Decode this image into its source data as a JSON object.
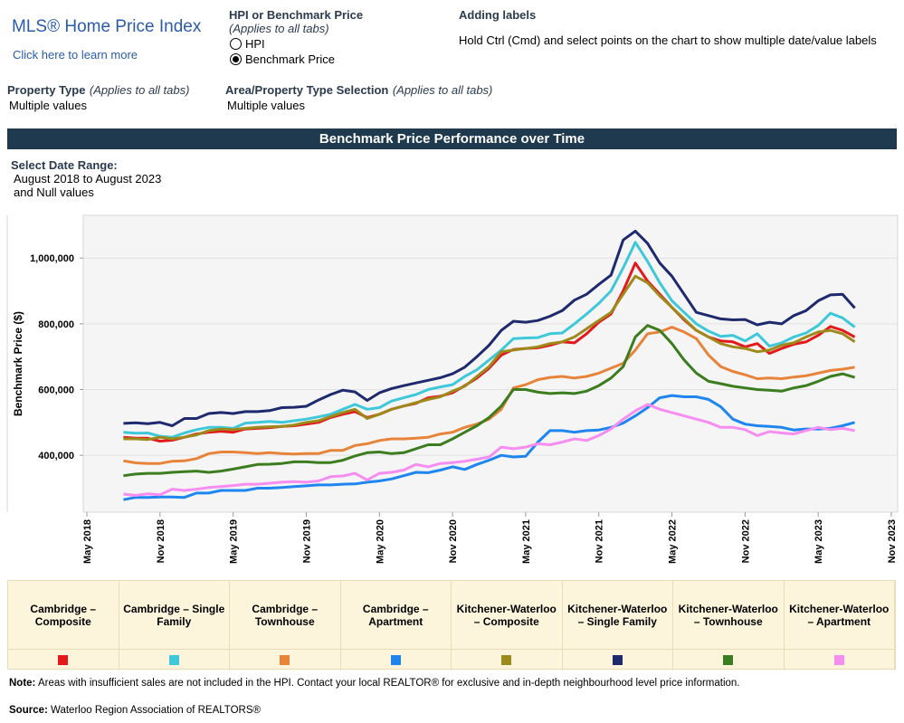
{
  "header": {
    "title": "MLS® Home Price Index",
    "link": "Click here to learn more"
  },
  "measure_toggle": {
    "label": "HPI or Benchmark Price",
    "note": "(Applies to all tabs)",
    "options": [
      "HPI",
      "Benchmark Price"
    ],
    "selected": 1
  },
  "labels_help": {
    "title": "Adding labels",
    "text": "Hold Ctrl (Cmd) and select points on the chart to show multiple date/value labels"
  },
  "filters": [
    {
      "label": "Property Type",
      "note": "(Applies to all tabs)",
      "value": "Multiple values"
    },
    {
      "label": "Area/Property Type Selection",
      "note": "(Applies to all tabs)",
      "value": "Multiple values"
    }
  ],
  "date_range": {
    "label": "Select Date Range:",
    "value": "August 2018 to August 2023",
    "extra": "and Null values"
  },
  "chart_data": {
    "type": "line",
    "title": "Benchmark Price Performance over Time",
    "y_label": "Benchmark Price ($)",
    "x": [
      "2018-08",
      "2018-09",
      "2018-10",
      "2018-11",
      "2018-12",
      "2019-01",
      "2019-02",
      "2019-03",
      "2019-04",
      "2019-05",
      "2019-06",
      "2019-07",
      "2019-08",
      "2019-09",
      "2019-10",
      "2019-11",
      "2019-12",
      "2020-01",
      "2020-02",
      "2020-03",
      "2020-04",
      "2020-05",
      "2020-06",
      "2020-07",
      "2020-08",
      "2020-09",
      "2020-10",
      "2020-11",
      "2020-12",
      "2021-01",
      "2021-02",
      "2021-03",
      "2021-04",
      "2021-05",
      "2021-06",
      "2021-07",
      "2021-08",
      "2021-09",
      "2021-10",
      "2021-11",
      "2021-12",
      "2022-01",
      "2022-02",
      "2022-03",
      "2022-04",
      "2022-05",
      "2022-06",
      "2022-07",
      "2022-08",
      "2022-09",
      "2022-10",
      "2022-11",
      "2022-12",
      "2023-01",
      "2023-02",
      "2023-03",
      "2023-04",
      "2023-05",
      "2023-06",
      "2023-07",
      "2023-08"
    ],
    "xlim": [
      "2018-05",
      "2023-11"
    ],
    "xticks": [
      {
        "value": "2018-05",
        "label": "May 2018"
      },
      {
        "value": "2018-11",
        "label": "Nov 2018"
      },
      {
        "value": "2019-05",
        "label": "May 2019"
      },
      {
        "value": "2019-11",
        "label": "Nov 2019"
      },
      {
        "value": "2020-05",
        "label": "May 2020"
      },
      {
        "value": "2020-11",
        "label": "Nov 2020"
      },
      {
        "value": "2021-05",
        "label": "May 2021"
      },
      {
        "value": "2021-11",
        "label": "Nov 2021"
      },
      {
        "value": "2022-05",
        "label": "May 2022"
      },
      {
        "value": "2022-11",
        "label": "Nov 2022"
      },
      {
        "value": "2023-05",
        "label": "May 2023"
      },
      {
        "value": "2023-11",
        "label": "Nov 2023"
      }
    ],
    "ylim": [
      227000,
      1130000
    ],
    "yticks": [
      {
        "value": 400000,
        "label": "400,000"
      },
      {
        "value": 600000,
        "label": "600,000"
      },
      {
        "value": 800000,
        "label": "800,000"
      },
      {
        "value": 1000000,
        "label": "1,000,000"
      }
    ],
    "grid": true,
    "series": [
      {
        "name": "Cambridge – Composite",
        "color": "#e3191c",
        "values": [
          455000,
          452000,
          452000,
          443000,
          446000,
          455000,
          465000,
          470000,
          473000,
          470000,
          480000,
          482000,
          484000,
          488000,
          490000,
          495000,
          500000,
          515000,
          525000,
          533000,
          515000,
          525000,
          540000,
          550000,
          558000,
          575000,
          580000,
          590000,
          612000,
          635000,
          665000,
          705000,
          722000,
          725000,
          727000,
          735000,
          745000,
          742000,
          770000,
          805000,
          830000,
          900000,
          985000,
          930000,
          890000,
          850000,
          812000,
          780000,
          760000,
          748000,
          745000,
          730000,
          740000,
          710000,
          725000,
          738000,
          745000,
          765000,
          792000,
          780000,
          760000
        ]
      },
      {
        "name": "Cambridge – Single Family",
        "color": "#3ec8d9",
        "values": [
          470000,
          467000,
          468000,
          458000,
          455000,
          468000,
          478000,
          485000,
          485000,
          482000,
          498000,
          500000,
          503000,
          500000,
          505000,
          510000,
          517000,
          525000,
          540000,
          555000,
          540000,
          545000,
          565000,
          575000,
          585000,
          600000,
          608000,
          615000,
          640000,
          660000,
          690000,
          720000,
          755000,
          757000,
          758000,
          770000,
          772000,
          800000,
          830000,
          862000,
          900000,
          970000,
          1048000,
          990000,
          925000,
          870000,
          835000,
          800000,
          778000,
          762000,
          765000,
          748000,
          770000,
          732000,
          742000,
          760000,
          772000,
          795000,
          832000,
          818000,
          790000
        ]
      },
      {
        "name": "Cambridge – Townhouse",
        "color": "#e8843a",
        "values": [
          383000,
          377000,
          375000,
          375000,
          382000,
          383000,
          390000,
          405000,
          410000,
          410000,
          408000,
          405000,
          408000,
          405000,
          404000,
          405000,
          405000,
          415000,
          415000,
          430000,
          435000,
          445000,
          450000,
          450000,
          452000,
          455000,
          465000,
          470000,
          485000,
          495000,
          510000,
          540000,
          605000,
          615000,
          630000,
          637000,
          640000,
          635000,
          640000,
          650000,
          665000,
          680000,
          720000,
          770000,
          775000,
          790000,
          775000,
          755000,
          705000,
          670000,
          655000,
          645000,
          633000,
          635000,
          633000,
          638000,
          642000,
          650000,
          658000,
          662000,
          668000
        ]
      },
      {
        "name": "Cambridge – Apartment",
        "color": "#1f86f0",
        "values": [
          265000,
          272000,
          272000,
          273000,
          273000,
          272000,
          285000,
          285000,
          293000,
          293000,
          293000,
          300000,
          300000,
          302000,
          305000,
          307000,
          310000,
          310000,
          312000,
          313000,
          318000,
          322000,
          328000,
          338000,
          348000,
          347000,
          355000,
          365000,
          357000,
          372000,
          385000,
          400000,
          395000,
          397000,
          440000,
          475000,
          475000,
          470000,
          475000,
          477000,
          485000,
          498000,
          520000,
          545000,
          575000,
          582000,
          578000,
          578000,
          570000,
          548000,
          510000,
          495000,
          490000,
          488000,
          485000,
          477000,
          480000,
          480000,
          482000,
          490000,
          500000
        ]
      },
      {
        "name": "Kitchener-Waterloo – Composite",
        "color": "#9e8a1b",
        "values": [
          450000,
          450000,
          448000,
          455000,
          450000,
          455000,
          462000,
          475000,
          480000,
          478000,
          482000,
          485000,
          487000,
          488000,
          492000,
          500000,
          505000,
          518000,
          530000,
          540000,
          512000,
          525000,
          540000,
          550000,
          560000,
          570000,
          578000,
          595000,
          610000,
          640000,
          670000,
          715000,
          720000,
          725000,
          730000,
          740000,
          745000,
          760000,
          785000,
          810000,
          835000,
          890000,
          945000,
          925000,
          885000,
          850000,
          815000,
          780000,
          760000,
          740000,
          730000,
          725000,
          715000,
          720000,
          735000,
          742000,
          760000,
          775000,
          780000,
          770000,
          745000
        ]
      },
      {
        "name": "Kitchener-Waterloo – Single Family",
        "color": "#1f2a6e",
        "values": [
          497000,
          499000,
          496000,
          500000,
          490000,
          512000,
          512000,
          527000,
          530000,
          527000,
          533000,
          533000,
          536000,
          545000,
          546000,
          549000,
          568000,
          585000,
          598000,
          593000,
          567000,
          590000,
          603000,
          612000,
          620000,
          628000,
          636000,
          648000,
          668000,
          700000,
          735000,
          780000,
          808000,
          805000,
          810000,
          823000,
          840000,
          872000,
          890000,
          920000,
          948000,
          1055000,
          1082000,
          1045000,
          985000,
          945000,
          890000,
          835000,
          825000,
          815000,
          812000,
          813000,
          797000,
          805000,
          800000,
          825000,
          840000,
          870000,
          888000,
          890000,
          848000
        ]
      },
      {
        "name": "Kitchener-Waterloo – Townhouse",
        "color": "#3b7d1f",
        "values": [
          338000,
          343000,
          345000,
          345000,
          348000,
          350000,
          352000,
          348000,
          352000,
          358000,
          365000,
          372000,
          373000,
          375000,
          380000,
          380000,
          378000,
          378000,
          385000,
          398000,
          408000,
          410000,
          405000,
          408000,
          420000,
          432000,
          432000,
          450000,
          470000,
          490000,
          515000,
          550000,
          600000,
          600000,
          592000,
          588000,
          590000,
          588000,
          595000,
          612000,
          635000,
          670000,
          760000,
          795000,
          780000,
          740000,
          690000,
          650000,
          625000,
          618000,
          610000,
          605000,
          600000,
          598000,
          595000,
          605000,
          612000,
          625000,
          640000,
          648000,
          637000
        ]
      },
      {
        "name": "Kitchener-Waterloo – Apartment",
        "color": "#f68ef2",
        "values": [
          282000,
          278000,
          283000,
          280000,
          297000,
          293000,
          297000,
          302000,
          305000,
          308000,
          312000,
          312000,
          315000,
          318000,
          320000,
          318000,
          322000,
          335000,
          337000,
          345000,
          325000,
          345000,
          348000,
          355000,
          372000,
          365000,
          375000,
          378000,
          382000,
          388000,
          395000,
          425000,
          420000,
          425000,
          435000,
          432000,
          440000,
          450000,
          445000,
          460000,
          480000,
          510000,
          535000,
          555000,
          540000,
          530000,
          520000,
          510000,
          500000,
          485000,
          485000,
          478000,
          460000,
          472000,
          468000,
          465000,
          475000,
          485000,
          478000,
          482000,
          475000
        ]
      }
    ]
  },
  "footer": {
    "note_label": "Note:",
    "note": "Areas with insufficient sales are not included in the HPI. Contact your local REALTOR® for exclusive and in-depth neighbourhood level price information.",
    "source_label": "Source:",
    "source": "Waterloo Region Association of REALTORS®"
  }
}
